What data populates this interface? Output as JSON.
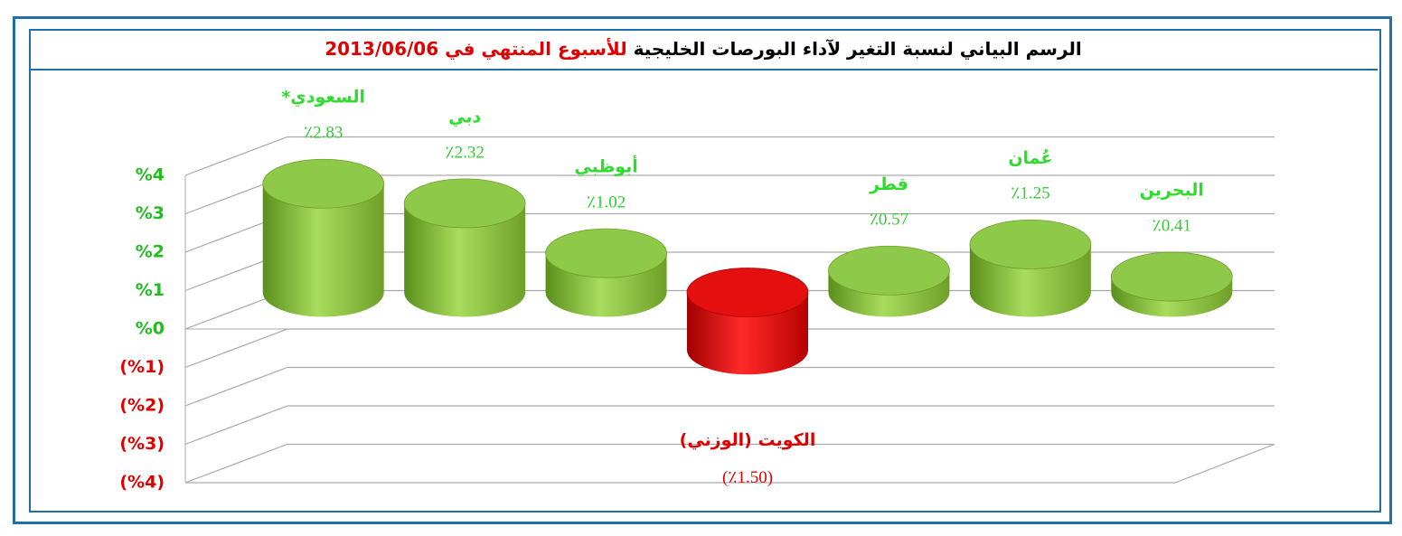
{
  "chart_data": {
    "type": "bar",
    "title": "الرسم البياني لنسبة التغير لآداء البورصات الخليجية",
    "title_highlight": "للأسبوع المنتهي في 2013/06/06",
    "categories": [
      "السعودي*",
      "دبي",
      "أبوظبي",
      "الكويت (الوزني)",
      "قطر",
      "عُمان",
      "البحرين"
    ],
    "values": [
      2.83,
      2.32,
      1.02,
      -1.5,
      0.57,
      1.25,
      0.41
    ],
    "value_labels": [
      "٪2.83",
      "٪2.32",
      "٪1.02",
      "(٪1.50)",
      "٪0.57",
      "٪1.25",
      "٪0.41"
    ],
    "color": "#7db83a",
    "negative_color": "#e00000",
    "ylim": [
      -4,
      4
    ],
    "yticks": [
      {
        "value": 4,
        "label": "%4"
      },
      {
        "value": 3,
        "label": "%3"
      },
      {
        "value": 2,
        "label": "%2"
      },
      {
        "value": 1,
        "label": "%1"
      },
      {
        "value": 0,
        "label": "%0"
      },
      {
        "value": -1,
        "label": "(%1)"
      },
      {
        "value": -2,
        "label": "(%2)"
      },
      {
        "value": -3,
        "label": "(%3)"
      },
      {
        "value": -4,
        "label": "(%4)"
      }
    ],
    "grid": true
  }
}
